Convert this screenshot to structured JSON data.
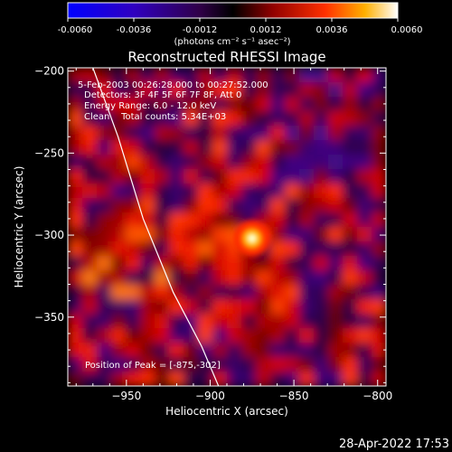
{
  "colorbar": {
    "tick_labels": [
      "-0.0060",
      "-0.0036",
      "-0.0012",
      "0.0012",
      "0.0036",
      "0.0060"
    ],
    "unit_label": "(photons cm⁻² s⁻¹ asec⁻²)",
    "range": [
      -0.006,
      0.006
    ]
  },
  "chart_data": {
    "type": "heatmap",
    "title": "Reconstructed RHESSI Image",
    "xlabel": "Heliocentric X (arcsec)",
    "ylabel": "Heliocentric Y (arcsec)",
    "xlim": [
      -985,
      -795
    ],
    "ylim": [
      -392,
      -198
    ],
    "x_ticks": [
      -950,
      -900,
      -850,
      -800
    ],
    "x_tick_labels": [
      "−950",
      "−900",
      "−850",
      "−800"
    ],
    "y_ticks": [
      -200,
      -250,
      -300,
      -350
    ],
    "y_tick_labels": [
      "−200",
      "−250",
      "−300",
      "−350"
    ],
    "peak": [
      -875,
      -302
    ],
    "annotations": [
      "5-Feb-2003 00:26:28.000 to 00:27:52.000",
      "Detectors: 3F 4F 5F 6F 7F 8F, Att 0",
      "Energy Range: 6.0 - 12.0 keV",
      "Clean    Total counts: 5.34E+03"
    ],
    "peak_label": "Position of Peak = [-875,-302]",
    "limb_curve": [
      [
        -970,
        -198
      ],
      [
        -955,
        -240
      ],
      [
        -940,
        -290
      ],
      [
        -922,
        -335
      ],
      [
        -905,
        -368
      ],
      [
        -895,
        -392
      ]
    ]
  },
  "footer": {
    "timestamp": "28-Apr-2022 17:53"
  }
}
